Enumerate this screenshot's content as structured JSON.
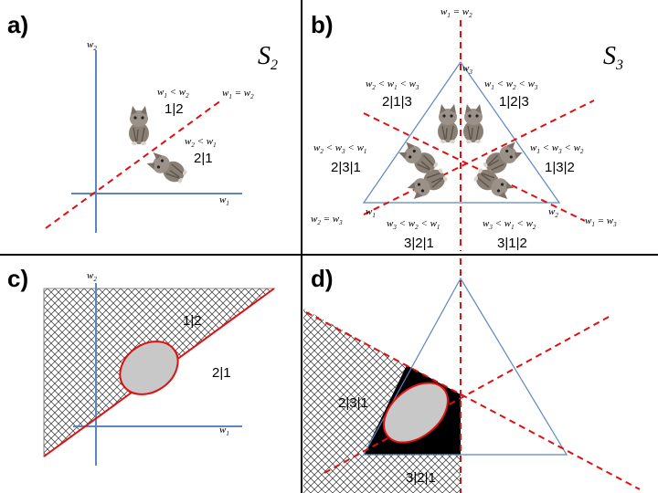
{
  "panels": {
    "a": {
      "label": "a)",
      "space": "S",
      "space_sub": "2"
    },
    "b": {
      "label": "b)",
      "space": "S",
      "space_sub": "3"
    },
    "c": {
      "label": "c)"
    },
    "d": {
      "label": "d)"
    }
  },
  "axes": {
    "w": "w",
    "one": "1",
    "two": "2",
    "three": "3"
  },
  "permutations": {
    "p12": "1|2",
    "p21": "2|1",
    "p213": "2|1|3",
    "p123": "1|2|3",
    "p231": "2|3|1",
    "p132": "1|3|2",
    "p321": "3|2|1",
    "p312": "3|1|2"
  },
  "symbols": {
    "lt": "<",
    "eq": "="
  },
  "cat_icon": "kitten-photo"
}
